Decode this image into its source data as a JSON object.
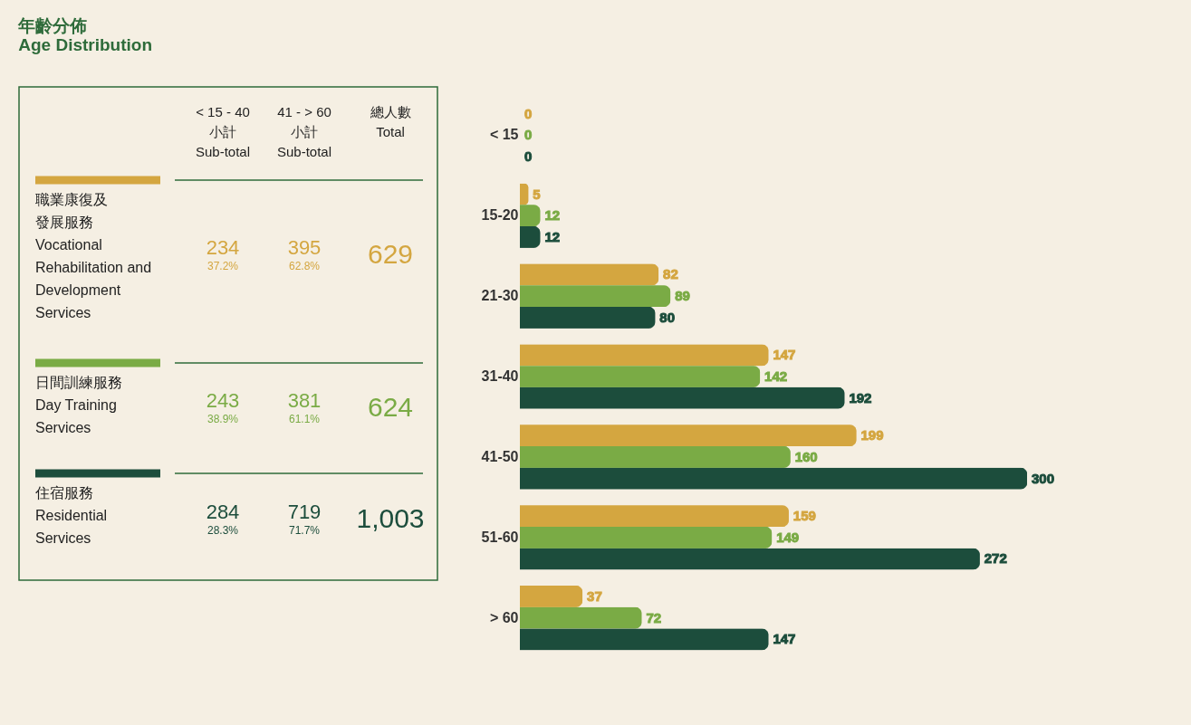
{
  "chart_data": [
    {
      "type": "other",
      "title": "年齡分佈\nAge Distribution",
      "annotations": [
        "< 15 - 40\n小計\nSub-total",
        "41 - > 60\n小計\nSub-total",
        "總人數\nTotal",
        "職業康復及發展服務\nVocational\nRehabilitation and\nDevelopment\nServices",
        "234",
        "37.2%",
        "395",
        "62.8%",
        "629",
        "日間訓練服務\nDay Training\nServices",
        "243",
        "38.9%",
        "381",
        "61.1%",
        "624",
        "住宿服務\nResidential\nServices",
        "284",
        "28.3%",
        "719",
        "71.7%",
        "1,003"
      ]
    },
    {
      "type": "bar",
      "orientation": "horizontal",
      "data_labels": true,
      "grid": false,
      "categories": [
        "< 15",
        "15-20",
        "21-30",
        "31-40",
        "41-50",
        "51-60",
        "> 60"
      ],
      "series": [
        {
          "color": "#d4a640",
          "values": [
            0,
            5,
            82,
            147,
            199,
            159,
            37
          ]
        },
        {
          "color": "#7aab45",
          "values": [
            0,
            12,
            89,
            142,
            160,
            149,
            72
          ]
        },
        {
          "color": "#1c4d3c",
          "values": [
            0,
            12,
            80,
            192,
            300,
            272,
            147
          ]
        }
      ]
    }
  ]
}
